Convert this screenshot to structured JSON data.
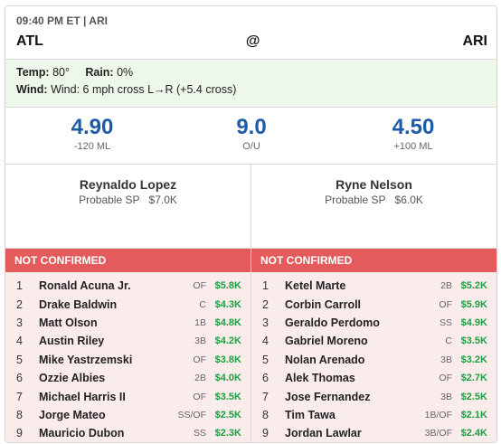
{
  "header": {
    "time": "09:40 PM ET | ARI",
    "away": "ATL",
    "at": "@",
    "home": "ARI"
  },
  "weather": {
    "temp_label": "Temp:",
    "temp": "80°",
    "rain_label": "Rain:",
    "rain": "0%",
    "wind_label": "Wind:",
    "wind": "Wind: 6 mph cross L→R (+5.4 cross)"
  },
  "lines": {
    "away_total": "4.90",
    "away_ml": "-120 ML",
    "ou": "9.0",
    "ou_label": "O/U",
    "home_total": "4.50",
    "home_ml": "+100 ML"
  },
  "pitchers": {
    "away": {
      "name": "Reynaldo Lopez",
      "label": "Probable SP",
      "salary": "$7.0K"
    },
    "home": {
      "name": "Ryne Nelson",
      "label": "Probable SP",
      "salary": "$6.0K"
    }
  },
  "lineups": {
    "away": {
      "status": "NOT CONFIRMED",
      "players": [
        {
          "num": "1",
          "name": "Ronald Acuna Jr.",
          "pos": "OF",
          "salary": "$5.8K"
        },
        {
          "num": "2",
          "name": "Drake Baldwin",
          "pos": "C",
          "salary": "$4.3K"
        },
        {
          "num": "3",
          "name": "Matt Olson",
          "pos": "1B",
          "salary": "$4.8K"
        },
        {
          "num": "4",
          "name": "Austin Riley",
          "pos": "3B",
          "salary": "$4.2K"
        },
        {
          "num": "5",
          "name": "Mike Yastrzemski",
          "pos": "OF",
          "salary": "$3.8K"
        },
        {
          "num": "6",
          "name": "Ozzie Albies",
          "pos": "2B",
          "salary": "$4.0K"
        },
        {
          "num": "7",
          "name": "Michael Harris II",
          "pos": "OF",
          "salary": "$3.5K"
        },
        {
          "num": "8",
          "name": "Jorge Mateo",
          "pos": "SS/OF",
          "salary": "$2.5K"
        },
        {
          "num": "9",
          "name": "Mauricio Dubon",
          "pos": "SS",
          "salary": "$2.3K"
        }
      ]
    },
    "home": {
      "status": "NOT CONFIRMED",
      "players": [
        {
          "num": "1",
          "name": "Ketel Marte",
          "pos": "2B",
          "salary": "$5.2K"
        },
        {
          "num": "2",
          "name": "Corbin Carroll",
          "pos": "OF",
          "salary": "$5.9K"
        },
        {
          "num": "3",
          "name": "Geraldo Perdomo",
          "pos": "SS",
          "salary": "$4.9K"
        },
        {
          "num": "4",
          "name": "Gabriel Moreno",
          "pos": "C",
          "salary": "$3.5K"
        },
        {
          "num": "5",
          "name": "Nolan Arenado",
          "pos": "3B",
          "salary": "$3.2K"
        },
        {
          "num": "6",
          "name": "Alek Thomas",
          "pos": "OF",
          "salary": "$2.7K"
        },
        {
          "num": "7",
          "name": "Jose Fernandez",
          "pos": "3B",
          "salary": "$2.5K"
        },
        {
          "num": "8",
          "name": "Tim Tawa",
          "pos": "1B/OF",
          "salary": "$2.1K"
        },
        {
          "num": "9",
          "name": "Jordan Lawlar",
          "pos": "3B/OF",
          "salary": "$2.4K"
        }
      ]
    }
  }
}
